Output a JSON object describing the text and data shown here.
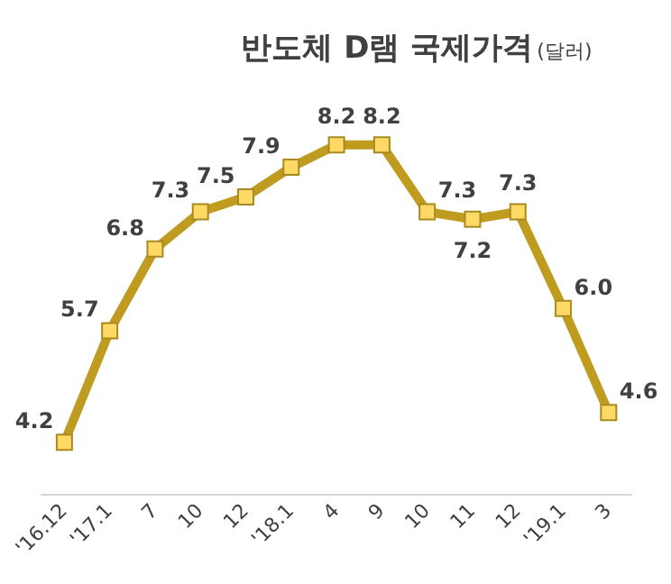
{
  "chart_data": {
    "type": "line",
    "title": "반도체 D램 국제가격",
    "subtitle": "(달러)",
    "categories": [
      "'16.12",
      "'17.1",
      "7",
      "10",
      "12",
      "'18.1",
      "4",
      "9",
      "10",
      "11",
      "12",
      "'19.1",
      "3"
    ],
    "series": [
      {
        "color": "#bf9b1f",
        "values": [
          4.2,
          5.7,
          6.8,
          7.3,
          7.5,
          7.9,
          8.2,
          8.2,
          7.3,
          7.2,
          7.3,
          6.0,
          4.6
        ],
        "value_labels": [
          "4.2",
          "5.7",
          "6.8",
          "7.3",
          "7.5",
          "7.9",
          "8.2",
          "8.2",
          "7.3",
          "7.2",
          "7.3",
          "6.0",
          "4.6"
        ]
      }
    ],
    "marker": "square",
    "line_style": "solid",
    "grid": false,
    "legend": false
  }
}
